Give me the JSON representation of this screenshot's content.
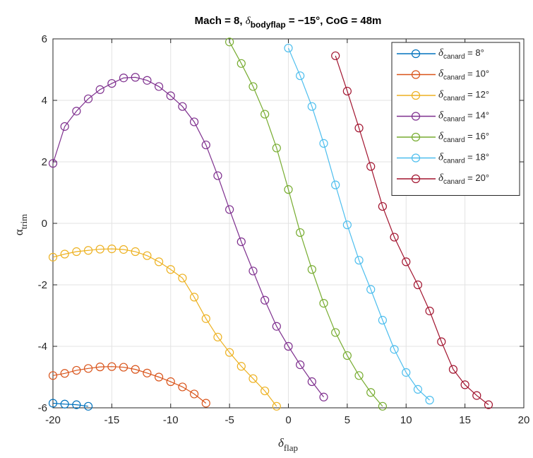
{
  "chart_data": {
    "type": "line",
    "title": {
      "prefix": "Mach = 8, ",
      "delta": "δ",
      "subscript": "bodyflap",
      "suffix": " = −15°, CoG = 48m"
    },
    "xlabel": {
      "symbol": "δ",
      "subscript": "flap"
    },
    "ylabel": {
      "symbol": "α",
      "subscript": "trim"
    },
    "xlim": [
      -20,
      20
    ],
    "ylim": [
      -6,
      6
    ],
    "xticks": [
      -20,
      -15,
      -10,
      -5,
      0,
      5,
      10,
      15,
      20
    ],
    "yticks": [
      -6,
      -4,
      -2,
      0,
      2,
      4,
      6
    ],
    "xtick_labels": [
      "-20",
      "-15",
      "-10",
      "-5",
      "0",
      "5",
      "10",
      "15",
      "20"
    ],
    "ytick_labels": [
      "-6",
      "-4",
      "-2",
      "0",
      "2",
      "4",
      "6"
    ],
    "grid": true,
    "legend_position": "top-right",
    "marker": "circle",
    "series": [
      {
        "name": "δcanard = 8°",
        "label": {
          "symbol": "δ",
          "subscript": "canard",
          "value": " = 8°"
        },
        "color": "#0072BD",
        "x": [
          -20,
          -19,
          -18,
          -17
        ],
        "y": [
          -5.85,
          -5.88,
          -5.9,
          -5.95
        ]
      },
      {
        "name": "δcanard = 10°",
        "label": {
          "symbol": "δ",
          "subscript": "canard",
          "value": " = 10°"
        },
        "color": "#D95319",
        "x": [
          -20,
          -19,
          -18,
          -17,
          -16,
          -15,
          -14,
          -13,
          -12,
          -11,
          -10,
          -9,
          -8,
          -7
        ],
        "y": [
          -4.95,
          -4.88,
          -4.78,
          -4.72,
          -4.67,
          -4.66,
          -4.68,
          -4.75,
          -4.87,
          -5.0,
          -5.15,
          -5.32,
          -5.55,
          -5.85
        ]
      },
      {
        "name": "δcanard = 12°",
        "label": {
          "symbol": "δ",
          "subscript": "canard",
          "value": " = 12°"
        },
        "color": "#EDB120",
        "x": [
          -20,
          -19,
          -18,
          -17,
          -16,
          -15,
          -14,
          -13,
          -12,
          -11,
          -10,
          -9,
          -8,
          -7,
          -6,
          -5,
          -4,
          -3,
          -2,
          -1
        ],
        "y": [
          -1.1,
          -1.0,
          -0.92,
          -0.88,
          -0.84,
          -0.83,
          -0.85,
          -0.92,
          -1.05,
          -1.25,
          -1.5,
          -1.78,
          -2.4,
          -3.1,
          -3.7,
          -4.2,
          -4.65,
          -5.05,
          -5.45,
          -5.95
        ]
      },
      {
        "name": "δcanard = 14°",
        "label": {
          "symbol": "δ",
          "subscript": "canard",
          "value": " = 14°"
        },
        "color": "#7E2F8E",
        "x": [
          -20,
          -19,
          -18,
          -17,
          -16,
          -15,
          -14,
          -13,
          -12,
          -11,
          -10,
          -9,
          -8,
          -7,
          -6,
          -5,
          -4,
          -3,
          -2,
          -1,
          0,
          1,
          2,
          3
        ],
        "y": [
          1.95,
          3.15,
          3.65,
          4.05,
          4.35,
          4.55,
          4.73,
          4.75,
          4.65,
          4.45,
          4.15,
          3.8,
          3.3,
          2.55,
          1.55,
          0.45,
          -0.6,
          -1.55,
          -2.5,
          -3.35,
          -4.0,
          -4.6,
          -5.15,
          -5.65
        ]
      },
      {
        "name": "δcanard = 16°",
        "label": {
          "symbol": "δ",
          "subscript": "canard",
          "value": " = 16°"
        },
        "color": "#77AC30",
        "x": [
          -5,
          -4,
          -3,
          -2,
          -1,
          0,
          1,
          2,
          3,
          4,
          5,
          6,
          7,
          8
        ],
        "y": [
          5.9,
          5.2,
          4.45,
          3.55,
          2.45,
          1.1,
          -0.3,
          -1.5,
          -2.6,
          -3.55,
          -4.3,
          -4.95,
          -5.5,
          -5.95
        ]
      },
      {
        "name": "δcanard = 18°",
        "label": {
          "symbol": "δ",
          "subscript": "canard",
          "value": " = 18°"
        },
        "color": "#4DBEEE",
        "x": [
          0,
          1,
          2,
          3,
          4,
          5,
          6,
          7,
          8,
          9,
          10,
          11,
          12
        ],
        "y": [
          5.7,
          4.8,
          3.8,
          2.6,
          1.25,
          -0.05,
          -1.2,
          -2.15,
          -3.15,
          -4.1,
          -4.85,
          -5.4,
          -5.75
        ]
      },
      {
        "name": "δcanard = 20°",
        "label": {
          "symbol": "δ",
          "subscript": "canard",
          "value": " = 20°"
        },
        "color": "#A2142F",
        "x": [
          4,
          5,
          6,
          7,
          8,
          9,
          10,
          11,
          12,
          13,
          14,
          15,
          16,
          17
        ],
        "y": [
          5.45,
          4.3,
          3.1,
          1.85,
          0.55,
          -0.45,
          -1.25,
          -2.0,
          -2.85,
          -3.85,
          -4.75,
          -5.25,
          -5.6,
          -5.9
        ]
      }
    ]
  }
}
